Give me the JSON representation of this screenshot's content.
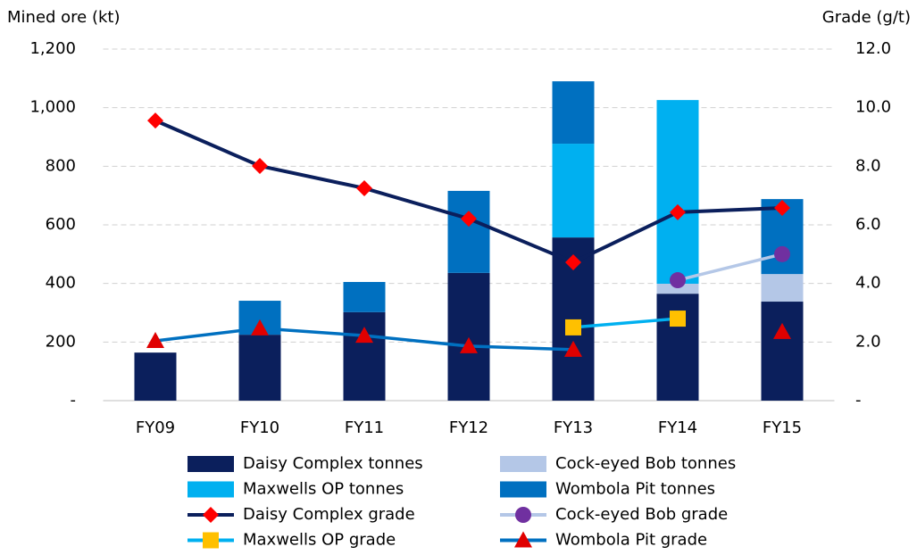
{
  "chart_data": {
    "type": "bar",
    "stacked": true,
    "y_label": "Mined ore (kt)",
    "y2_label": "Grade (g/t)",
    "categories": [
      "FY09",
      "FY10",
      "FY11",
      "FY12",
      "FY13",
      "FY14",
      "FY15"
    ],
    "ylim": [
      0,
      1200
    ],
    "yticks": [
      {
        "value": 0,
        "label": "-"
      },
      200,
      400,
      600,
      800,
      {
        "value": 1000,
        "label": "1,000"
      },
      {
        "value": 1200,
        "label": "1,200"
      }
    ],
    "y2lim": [
      0,
      12
    ],
    "y2ticks": [
      {
        "value": 0,
        "label": "-"
      },
      {
        "value": 2,
        "label": "2.0"
      },
      {
        "value": 4,
        "label": "4.0"
      },
      {
        "value": 6,
        "label": "6.0"
      },
      {
        "value": 8,
        "label": "8.0"
      },
      {
        "value": 10,
        "label": "10.0"
      },
      {
        "value": 12,
        "label": "12.0"
      }
    ],
    "grid": true,
    "series": [
      {
        "name": "Daisy Complex tonnes",
        "type": "bar",
        "color": "#0b1f5c",
        "values": [
          164,
          225,
          302,
          436,
          557,
          365,
          338
        ]
      },
      {
        "name": "Cock-eyed Bob tonnes",
        "type": "bar",
        "color": "#b4c7e7",
        "values": [
          0,
          0,
          0,
          0,
          0,
          34,
          94
        ]
      },
      {
        "name": "Maxwells OP tonnes",
        "type": "bar",
        "color": "#00b0f0",
        "values": [
          0,
          0,
          0,
          0,
          320,
          627,
          0
        ]
      },
      {
        "name": "Wombola Pit tonnes",
        "type": "bar",
        "color": "#0070c0",
        "values": [
          0,
          116,
          103,
          280,
          213,
          0,
          256
        ]
      },
      {
        "name": "Daisy Complex grade",
        "type": "line",
        "axis": "y2",
        "color": "#0b1f5c",
        "marker": "diamond",
        "marker_color": "#ff0000",
        "values": [
          9.56,
          8.01,
          7.25,
          6.21,
          4.72,
          6.43,
          6.58
        ]
      },
      {
        "name": "Cock-eyed Bob grade",
        "type": "line",
        "axis": "y2",
        "color": "#b4c7e7",
        "marker": "circle",
        "marker_color": "#7030a0",
        "values": [
          null,
          null,
          null,
          null,
          null,
          4.11,
          5.0
        ]
      },
      {
        "name": "Maxwells OP grade",
        "type": "line",
        "axis": "y2",
        "color": "#00b0f0",
        "marker": "square",
        "marker_color": "#ffc000",
        "values": [
          null,
          null,
          null,
          null,
          2.5,
          2.8,
          null
        ]
      },
      {
        "name": "Wombola Pit grade",
        "type": "line",
        "axis": "y2",
        "color": "#0070c0",
        "marker": "triangle",
        "marker_color": "#e00000",
        "values": [
          2.04,
          2.47,
          2.22,
          1.86,
          1.74,
          null,
          2.35
        ]
      }
    ]
  }
}
